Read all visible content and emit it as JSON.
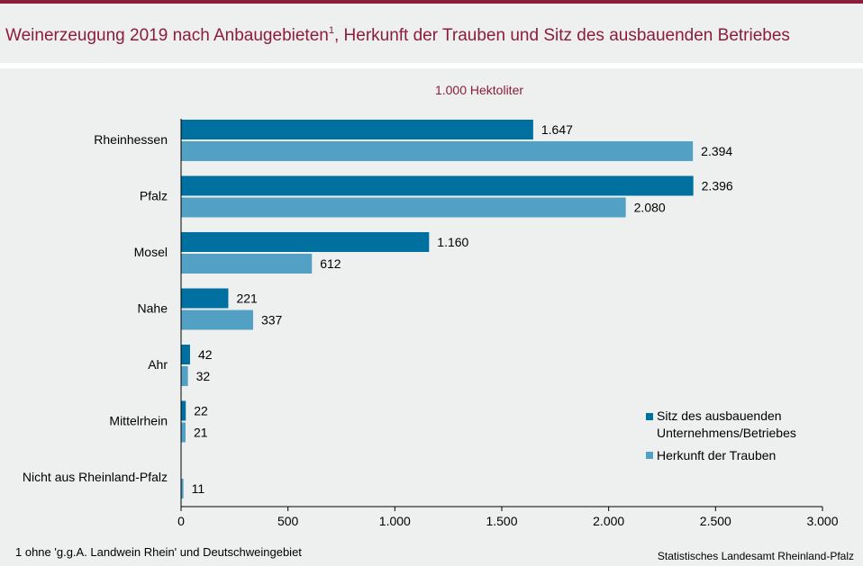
{
  "header": {
    "title": "Weinerzeugung 2019 nach Anbaugebieten",
    "title_sup": "1",
    "title_rest": ", Herkunft der Trauben und Sitz des ausbauenden Betriebes"
  },
  "colors": {
    "accent": "#8c1d3c",
    "series_dark": "#0070a0",
    "series_light": "#52a0c4"
  },
  "chart_data": {
    "type": "bar",
    "orientation": "horizontal",
    "unit_label": "1.000 Hektoliter",
    "categories": [
      "Rheinhessen",
      "Pfalz",
      "Mosel",
      "Nahe",
      "Ahr",
      "Mittelrhein",
      "Nicht aus Rheinland-Pfalz"
    ],
    "series": [
      {
        "name": "Sitz des ausbauenden Unternehmens/Betriebes",
        "values": [
          1647,
          2396,
          1160,
          221,
          42,
          22,
          null
        ],
        "labels": [
          "1.647",
          "2.396",
          "1.160",
          "221",
          "42",
          "22",
          ""
        ]
      },
      {
        "name": "Herkunft der Trauben",
        "values": [
          2394,
          2080,
          612,
          337,
          32,
          21,
          11
        ],
        "labels": [
          "2.394",
          "2.080",
          "612",
          "337",
          "32",
          "21",
          "11"
        ]
      }
    ],
    "xlim": [
      0,
      3000
    ],
    "xticks": [
      0,
      500,
      1000,
      1500,
      2000,
      2500,
      3000
    ],
    "xtick_labels": [
      "0",
      "500",
      "1.000",
      "1.500",
      "2.000",
      "2.500",
      "3.000"
    ],
    "legend_position": "bottom-right",
    "grid": false
  },
  "footer": {
    "footnote": "1 ohne 'g.g.A. Landwein Rhein' und Deutschweingebiet",
    "source": "Statistisches Landesamt Rheinland-Pfalz"
  }
}
